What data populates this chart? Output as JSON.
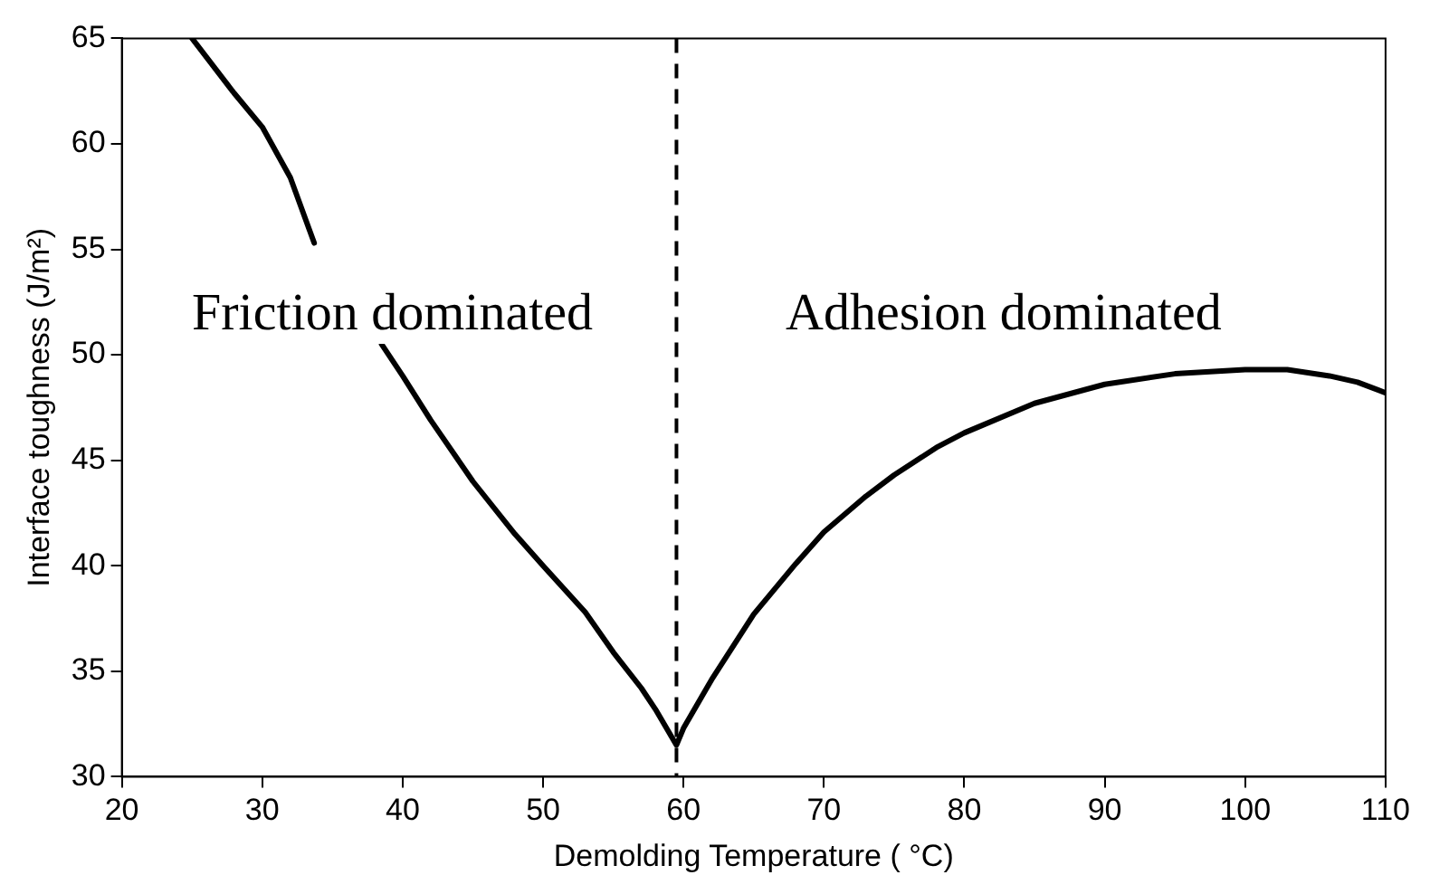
{
  "chart_data": {
    "type": "line",
    "xlabel": "Demolding Temperature ( °C)",
    "ylabel": "Interface toughness (J/m²)",
    "xlim": [
      20,
      110
    ],
    "xticks": [
      20,
      30,
      40,
      50,
      60,
      70,
      80,
      90,
      100,
      110
    ],
    "ylim": [
      30,
      65
    ],
    "yticks": [
      30,
      35,
      40,
      45,
      50,
      55,
      60,
      65
    ],
    "grid": false,
    "legend": false,
    "marker": "none",
    "line_style": "solid",
    "series": [
      {
        "color": "#000000",
        "x": [
          25,
          28,
          30,
          32,
          33.7,
          36,
          38.5,
          40,
          42,
          45,
          48,
          50,
          53,
          55,
          57,
          58,
          59.5,
          60,
          62,
          65,
          68,
          70,
          73,
          75,
          78,
          80,
          85,
          90,
          95,
          100,
          103,
          106,
          108,
          110
        ],
        "values": [
          65,
          62.4,
          60.8,
          58.4,
          55.3,
          null,
          50.5,
          49,
          46.9,
          44,
          41.5,
          40,
          37.8,
          35.9,
          34.2,
          33.2,
          31.5,
          32.3,
          34.6,
          37.7,
          40.1,
          41.6,
          43.3,
          44.3,
          45.6,
          46.3,
          47.7,
          48.6,
          49.1,
          49.3,
          49.3,
          49,
          48.7,
          48.2
        ]
      }
    ],
    "ref_lines": [
      {
        "axis": "x",
        "value": 59.5,
        "color": "#000000",
        "line_style": "dashed"
      }
    ],
    "annotations": [
      "Friction dominated",
      "Adhesion dominated"
    ]
  }
}
